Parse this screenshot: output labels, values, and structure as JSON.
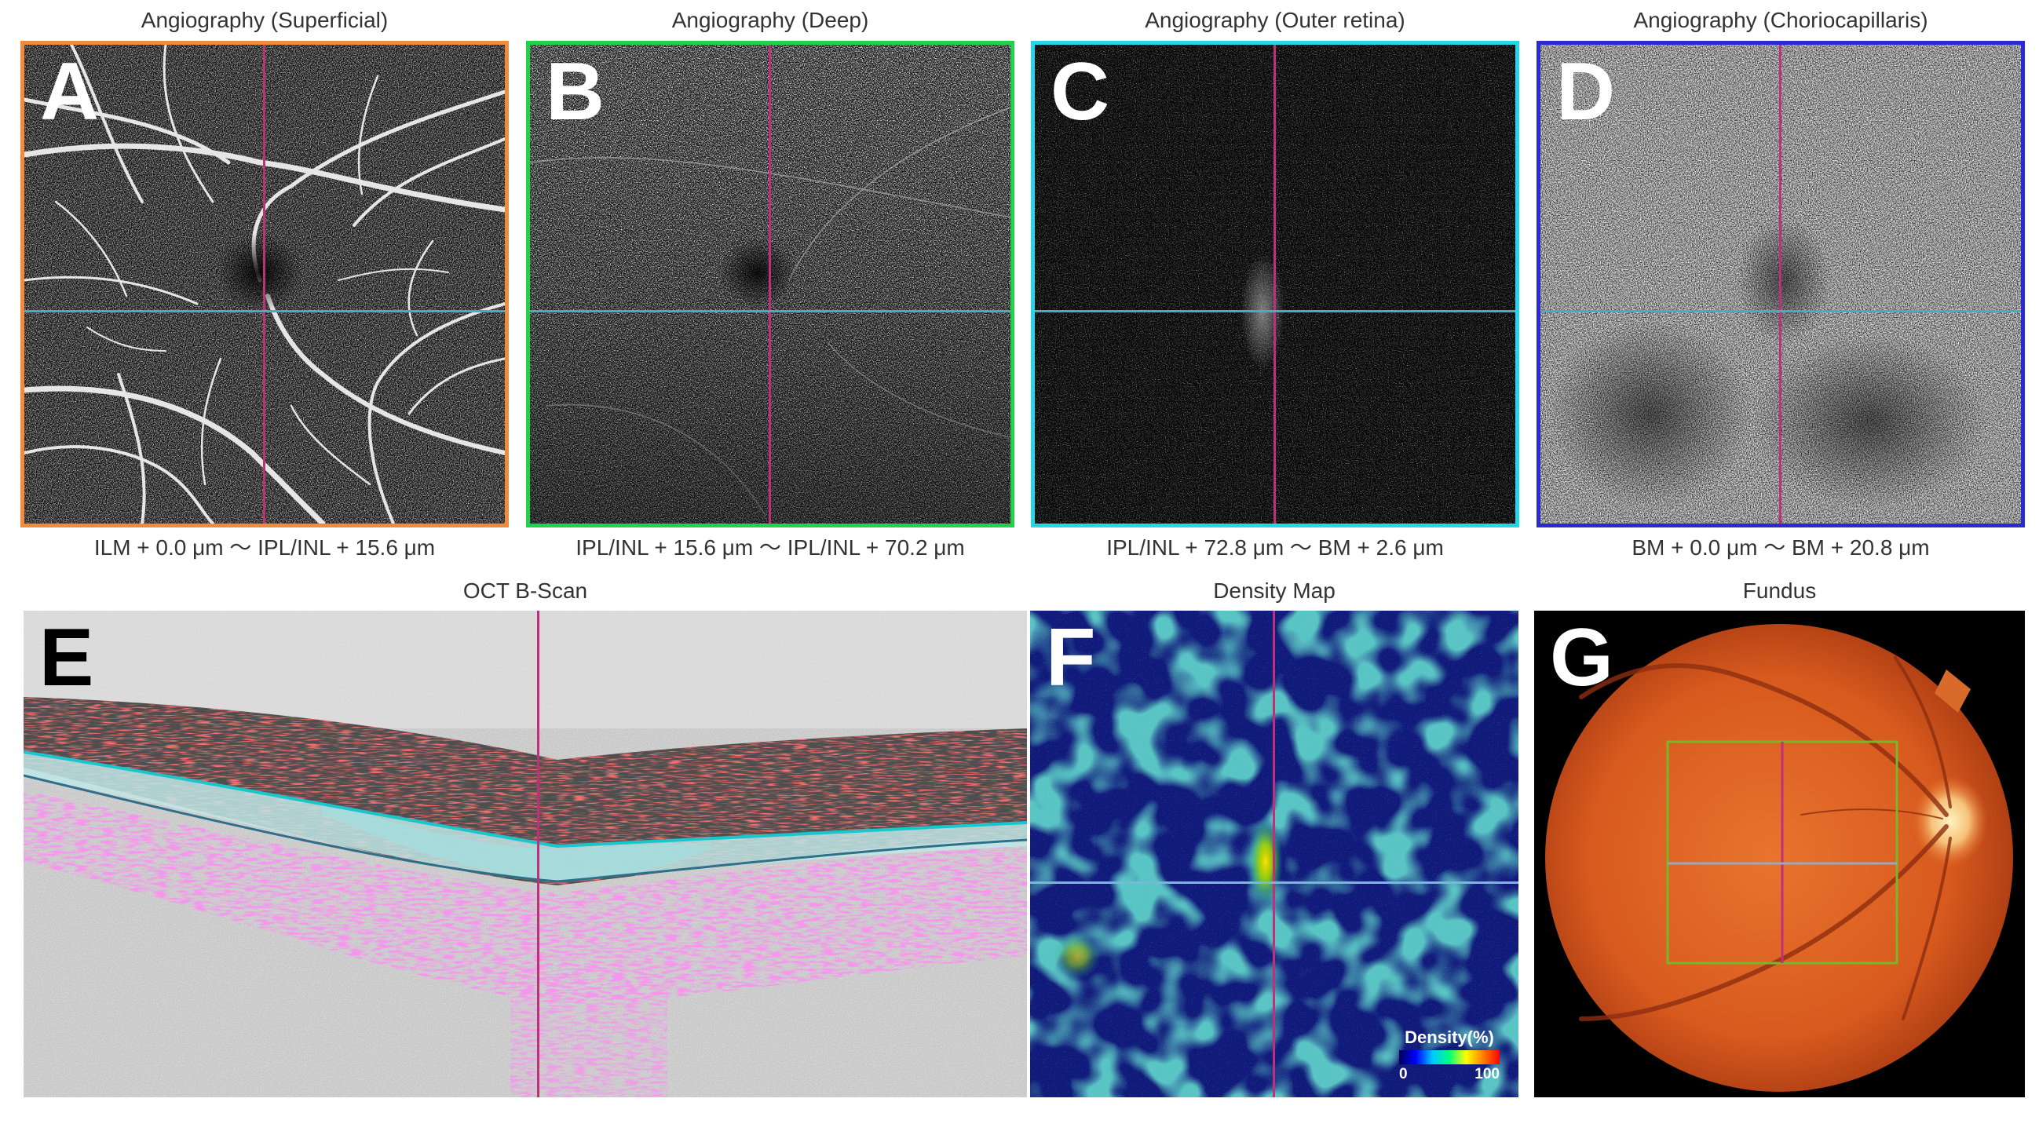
{
  "panels": {
    "a": {
      "title": "Angiography (Superficial)",
      "letter": "A",
      "caption": "ILM + 0.0 μm 〜 IPL/INL + 15.6 μm",
      "border_color": "#f08a3c"
    },
    "b": {
      "title": "Angiography (Deep)",
      "letter": "B",
      "caption": "IPL/INL + 15.6 μm 〜 IPL/INL + 70.2 μm",
      "border_color": "#21d14a"
    },
    "c": {
      "title": "Angiography (Outer retina)",
      "letter": "C",
      "caption": "IPL/INL + 72.8 μm 〜 BM + 2.6 μm",
      "border_color": "#27d6e6"
    },
    "d": {
      "title": "Angiography (Choriocapillaris)",
      "letter": "D",
      "caption": "BM + 0.0 μm 〜 BM + 20.8 μm",
      "border_color": "#2a2ad0"
    },
    "e": {
      "title": "OCT B-Scan",
      "letter": "E"
    },
    "f": {
      "title": "Density Map",
      "letter": "F",
      "legend_title": "Density(%)",
      "legend_min": "0",
      "legend_max": "100"
    },
    "g": {
      "title": "Fundus",
      "letter": "G"
    }
  },
  "colors": {
    "crosshair_vertical": "#c0307a",
    "crosshair_horizontal": "#4aa9c4",
    "fundus_scan_box": "#7ab62a"
  }
}
